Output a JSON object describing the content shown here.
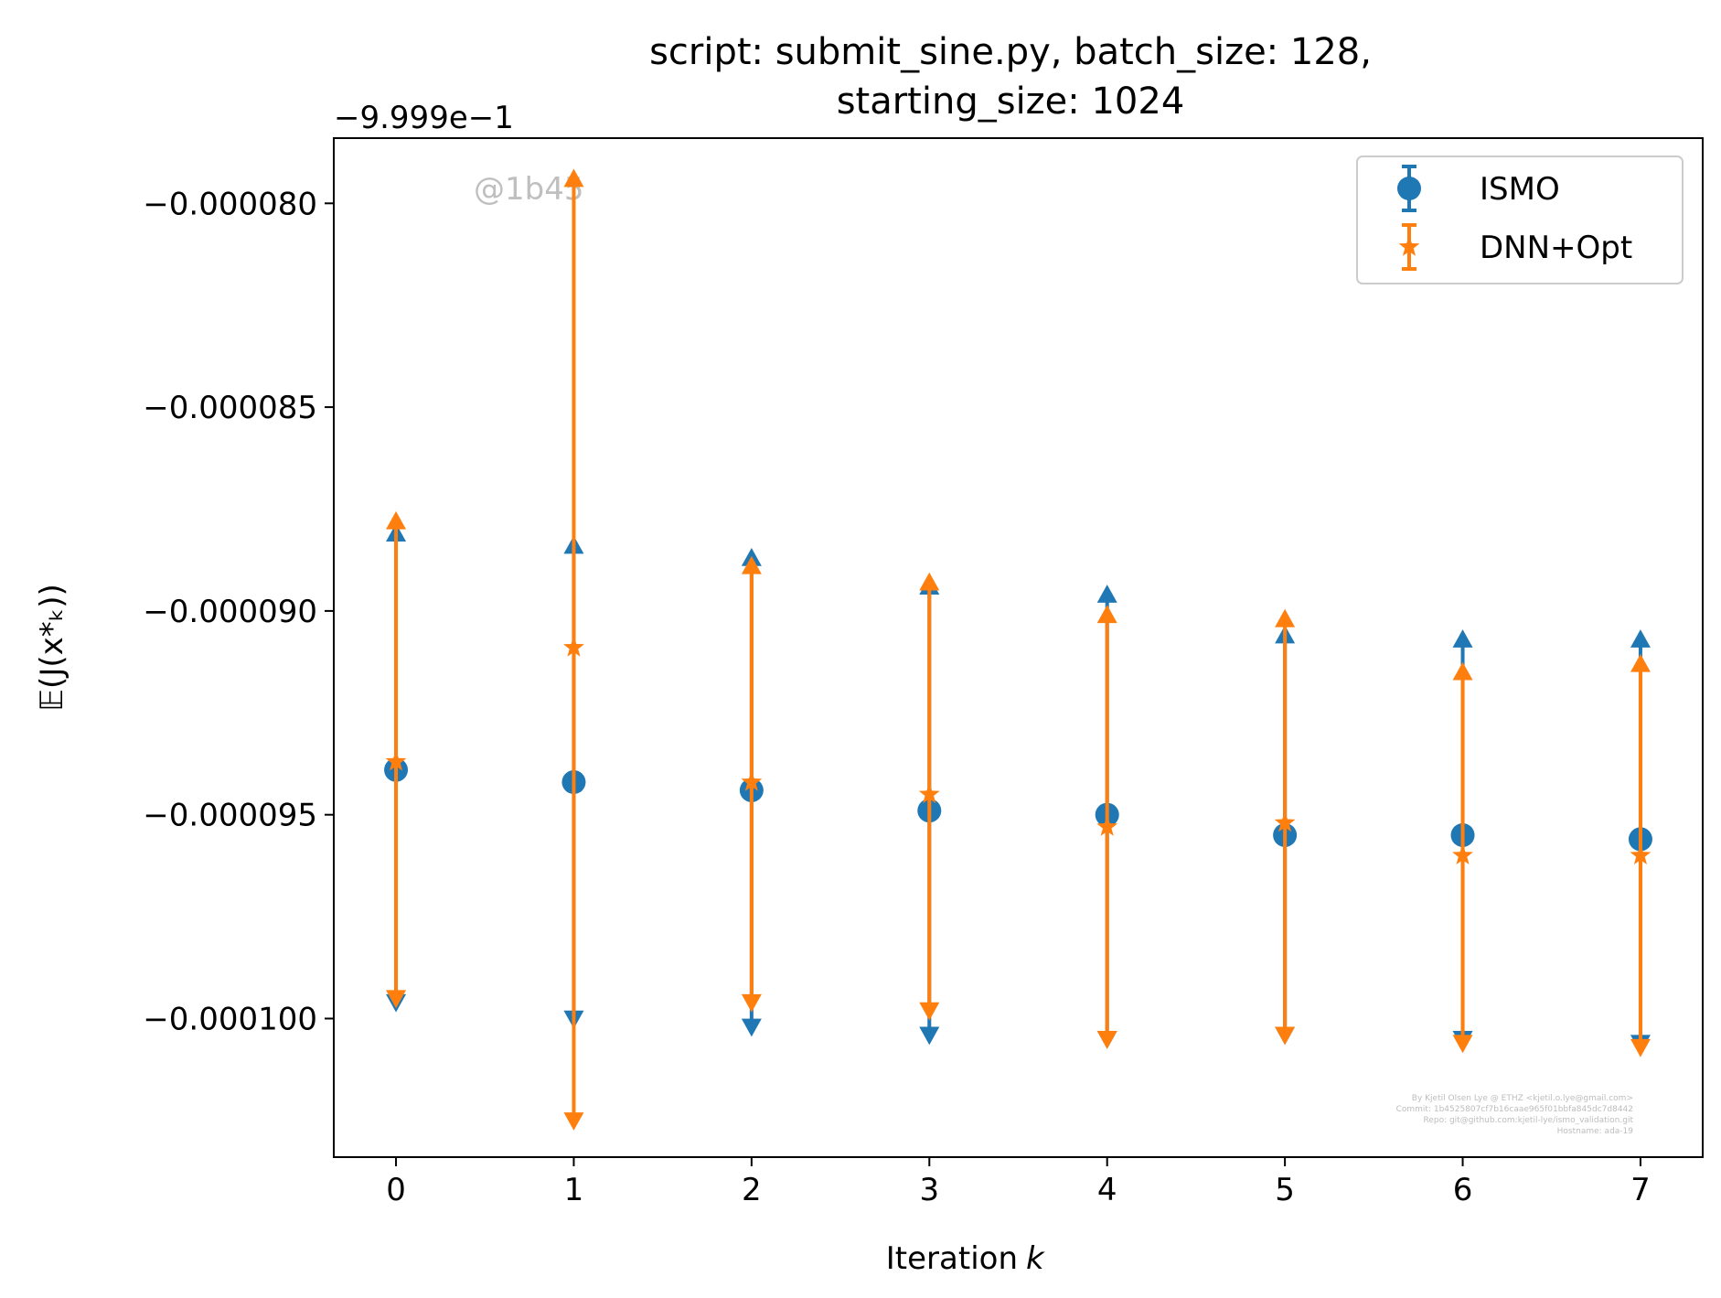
{
  "chart_data": {
    "type": "scatter",
    "title_lines": [
      "script: submit_sine.py, batch_size: 128,",
      "starting_size: 1024"
    ],
    "xlabel": "Iteration",
    "xlabel_var": "k",
    "ylabel": "𝔼(J(x*ₖ))",
    "offset_text": "−9.999e−1",
    "x": [
      0,
      1,
      2,
      3,
      4,
      5,
      6,
      7
    ],
    "xlim": [
      -0.35,
      7.35
    ],
    "ylim": [
      -0.0001034,
      -7.84e-05
    ],
    "x_ticks": [
      0,
      1,
      2,
      3,
      4,
      5,
      6,
      7
    ],
    "y_ticks": [
      -8e-05,
      -8.5e-05,
      -9e-05,
      -9.5e-05,
      -0.0001
    ],
    "y_tick_labels": [
      "−0.000080",
      "−0.000085",
      "−0.000090",
      "−0.000095",
      "−0.000100"
    ],
    "grid": false,
    "legend_position": "top-right",
    "series": [
      {
        "name": "ISMO",
        "color": "#1f77b4",
        "marker": "circle",
        "values": [
          -9.39e-05,
          -9.42e-05,
          -9.44e-05,
          -9.49e-05,
          -9.5e-05,
          -9.55e-05,
          -9.55e-05,
          -9.56e-05
        ],
        "upper": [
          -8.81e-05,
          -8.84e-05,
          -8.87e-05,
          -8.94e-05,
          -8.96e-05,
          -9.06e-05,
          -9.07e-05,
          -9.07e-05
        ],
        "lower": [
          -9.96e-05,
          -0.0001,
          -0.0001002,
          -0.0001004,
          -0.0001005,
          -0.0001004,
          -0.0001005,
          -0.0001006
        ]
      },
      {
        "name": "DNN+Opt",
        "color": "#ff7f0e",
        "marker": "star",
        "values": [
          -9.37e-05,
          -9.09e-05,
          -9.42e-05,
          -9.45e-05,
          -9.53e-05,
          -9.52e-05,
          -9.6e-05,
          -9.6e-05
        ],
        "upper": [
          -8.78e-05,
          -7.94e-05,
          -8.89e-05,
          -8.93e-05,
          -9.01e-05,
          -9.02e-05,
          -9.15e-05,
          -9.13e-05
        ],
        "lower": [
          -9.95e-05,
          -0.0001025,
          -9.96e-05,
          -9.98e-05,
          -0.0001005,
          -0.0001004,
          -0.0001006,
          -0.0001007
        ]
      }
    ]
  },
  "watermark": "@1b45",
  "credits": [
    "By Kjetil Olsen Lye @ ETHZ <kjetil.o.lye@gmail.com>",
    "Commit: 1b4525807cf7b16caae965f01bbfa845dc7d8442",
    "Repo: git@github.com:kjetil-lye/ismo_validation.git",
    "Hostname: ada-19"
  ]
}
